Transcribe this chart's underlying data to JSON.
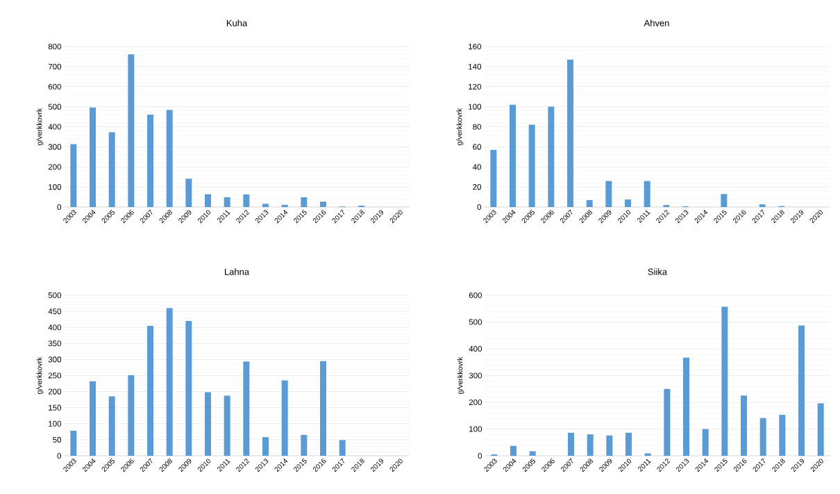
{
  "chart_data": [
    {
      "type": "bar",
      "title": "Kuha",
      "ylabel": "g/verkkovrk",
      "categories": [
        "2003",
        "2004",
        "2005",
        "2006",
        "2007",
        "2008",
        "2009",
        "2010",
        "2011",
        "2012",
        "2013",
        "2014",
        "2015",
        "2016",
        "2017",
        "2018",
        "2019",
        "2020"
      ],
      "values": [
        313,
        496,
        373,
        761,
        461,
        484,
        141,
        64,
        49,
        63,
        16,
        11,
        49,
        27,
        3,
        7,
        0,
        0
      ],
      "color": "#5b9bd5",
      "ylim": [
        0,
        800
      ],
      "yticks": [
        0,
        100,
        200,
        300,
        400,
        500,
        600,
        700,
        800
      ],
      "grid": "y"
    },
    {
      "type": "bar",
      "title": "Ahven",
      "ylabel": "g/verkkovrk",
      "categories": [
        "2003",
        "2004",
        "2005",
        "2006",
        "2007",
        "2008",
        "2009",
        "2010",
        "2011",
        "2012",
        "2013",
        "2014",
        "2015",
        "2016",
        "2017",
        "2018",
        "2019",
        "2020"
      ],
      "values": [
        57,
        102,
        82,
        100,
        147,
        7,
        26,
        7.5,
        26,
        2,
        0.8,
        0,
        13,
        0,
        2.7,
        1,
        0,
        0
      ],
      "color": "#5b9bd5",
      "ylim": [
        0,
        160
      ],
      "yticks": [
        0,
        20,
        40,
        60,
        80,
        100,
        120,
        140,
        160
      ],
      "grid": "y"
    },
    {
      "type": "bar",
      "title": "Lahna",
      "ylabel": "g/verkkovrk",
      "categories": [
        "2003",
        "2004",
        "2005",
        "2006",
        "2007",
        "2008",
        "2009",
        "2010",
        "2011",
        "2012",
        "2013",
        "2014",
        "2015",
        "2016",
        "2017",
        "2018",
        "2019",
        "2020"
      ],
      "values": [
        78,
        232,
        185,
        251,
        405,
        460,
        420,
        198,
        187,
        294,
        58,
        235,
        65,
        295,
        49,
        0,
        0,
        0
      ],
      "color": "#5b9bd5",
      "ylim": [
        0,
        500
      ],
      "yticks": [
        0,
        50,
        100,
        150,
        200,
        250,
        300,
        350,
        400,
        450,
        500
      ],
      "grid": "y"
    },
    {
      "type": "bar",
      "title": "Siika",
      "ylabel": "g/verkkovrk",
      "categories": [
        "2003",
        "2004",
        "2005",
        "2006",
        "2007",
        "2008",
        "2009",
        "2010",
        "2011",
        "2012",
        "2013",
        "2014",
        "2015",
        "2016",
        "2017",
        "2018",
        "2019",
        "2020"
      ],
      "values": [
        5,
        37,
        17,
        0,
        86,
        80,
        76,
        86,
        9,
        250,
        367,
        100,
        557,
        225,
        141,
        153,
        487,
        196
      ],
      "color": "#5b9bd5",
      "ylim": [
        0,
        600
      ],
      "yticks": [
        0,
        100,
        200,
        300,
        400,
        500,
        600
      ],
      "grid": "y"
    }
  ]
}
